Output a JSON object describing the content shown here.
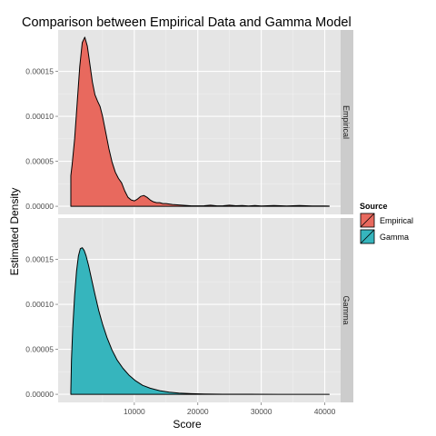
{
  "chart_data": {
    "type": "area",
    "title": "Comparison between Empirical Data and Gamma Model",
    "xlabel": "Score",
    "ylabel": "Estimated Density",
    "xlim": [
      -2000,
      42500
    ],
    "ylim": [
      -9e-06,
      0.000196
    ],
    "x_ticks": [
      10000,
      20000,
      30000,
      40000
    ],
    "x_tick_labels": [
      "10000",
      "20000",
      "30000",
      "40000"
    ],
    "y_ticks": [
      0,
      5e-05,
      0.0001,
      0.00015
    ],
    "y_tick_labels": [
      "0.00000",
      "0.00005",
      "0.00010",
      "0.00015"
    ],
    "grid": true,
    "facet_by": "Source",
    "legend": {
      "title": "Source",
      "placement": "right",
      "entries": [
        "Empirical",
        "Gamma"
      ]
    },
    "series": [
      {
        "name": "Empirical",
        "panel": "Empirical",
        "color": "#E8695E",
        "x": [
          0,
          200,
          600,
          1000,
          1400,
          1800,
          2200,
          2600,
          3000,
          3400,
          3800,
          4200,
          4600,
          5000,
          5500,
          6000,
          6500,
          7000,
          7500,
          8000,
          8500,
          9000,
          9500,
          10000,
          10500,
          11000,
          11500,
          12000,
          12500,
          13000,
          13500,
          14000,
          14500,
          15000,
          16000,
          17000,
          18000,
          19000,
          20000,
          21000,
          22000,
          23000,
          24000,
          25000,
          26000,
          27000,
          28000,
          29000,
          30000,
          32000,
          34000,
          36000,
          38000,
          40000,
          40700
        ],
        "values": [
          3.4e-05,
          4.6e-05,
          7.5e-05,
          0.000115,
          0.000155,
          0.000182,
          0.000188,
          0.000178,
          0.000158,
          0.000138,
          0.000124,
          0.000117,
          0.000111,
          0.0001,
          8.2e-05,
          6.4e-05,
          4.9e-05,
          3.8e-05,
          3.1e-05,
          2.6e-05,
          1.7e-05,
          1e-05,
          7e-06,
          6e-06,
          8e-06,
          1.1e-05,
          1.2e-05,
          1e-05,
          7e-06,
          5e-06,
          4e-06,
          4e-06,
          3e-06,
          3e-06,
          2e-06,
          1.5e-06,
          1e-06,
          5e-07,
          5e-07,
          6e-07,
          1.2e-06,
          5e-07,
          6e-07,
          1.2e-06,
          6e-07,
          9e-07,
          4e-07,
          8e-07,
          4e-07,
          8e-07,
          4e-07,
          8e-07,
          4e-07,
          3e-07,
          2e-07
        ]
      },
      {
        "name": "Gamma",
        "panel": "Gamma",
        "color": "#36B5BD",
        "x": [
          0,
          100,
          300,
          600,
          900,
          1200,
          1500,
          1800,
          2100,
          2400,
          2800,
          3300,
          3800,
          4400,
          5000,
          5700,
          6500,
          7300,
          8200,
          9200,
          10200,
          11300,
          12500,
          14000,
          15500,
          17000,
          19000,
          21000,
          24000,
          28000,
          33000,
          40700
        ],
        "values": [
          3.5e-06,
          3.8e-05,
          7.3e-05,
          0.00011,
          0.000137,
          0.000154,
          0.000162,
          0.000163,
          0.00016,
          0.000154,
          0.000143,
          0.000127,
          0.000111,
          9.3e-05,
          7.8e-05,
          6.3e-05,
          4.9e-05,
          3.8e-05,
          2.9e-05,
          2.1e-05,
          1.5e-05,
          1e-05,
          6.8e-06,
          4e-06,
          2.4e-06,
          1.4e-06,
          7e-07,
          3e-07,
          1e-07,
          3e-08,
          1e-08,
          0.0
        ]
      }
    ]
  }
}
